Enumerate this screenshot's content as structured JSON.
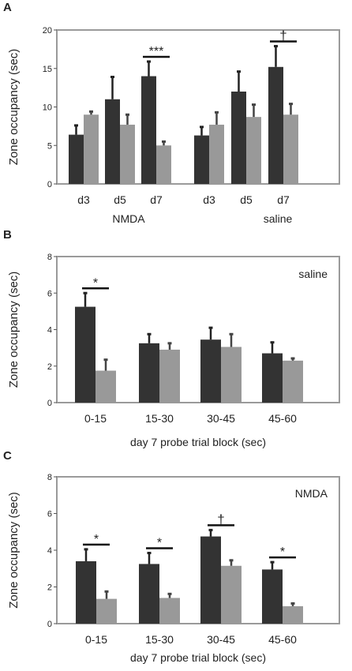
{
  "chart_data": [
    {
      "panel_label": "A",
      "type": "bar",
      "ylabel": "Zone occupancy (sec)",
      "ylim": [
        0,
        20
      ],
      "yticks": [
        "0",
        "5",
        "10",
        "15",
        "20"
      ],
      "groups": [
        "NMDA",
        "saline"
      ],
      "categories": [
        "d3",
        "d5",
        "d7",
        "d3",
        "d5",
        "d7"
      ],
      "series": [
        {
          "color": "#333333",
          "values": [
            6.4,
            11.0,
            14.0,
            6.3,
            12.0,
            15.2
          ],
          "errors": [
            1.2,
            2.9,
            1.9,
            1.1,
            2.6,
            2.7
          ]
        },
        {
          "color": "#999999",
          "values": [
            9.0,
            7.7,
            5.0,
            7.7,
            8.7,
            9.0
          ],
          "errors": [
            0.4,
            1.3,
            0.5,
            1.6,
            1.6,
            1.4
          ]
        }
      ],
      "annotations": [
        {
          "index": 2,
          "text": "***"
        },
        {
          "index": 5,
          "text": "†"
        }
      ]
    },
    {
      "panel_label": "B",
      "type": "bar",
      "xlabel": "day 7 probe trial block (sec)",
      "ylabel": "Zone occupancy (sec)",
      "ylim": [
        0,
        8
      ],
      "yticks": [
        "0",
        "2",
        "4",
        "6",
        "8"
      ],
      "inset_text": "saline",
      "categories": [
        "0-15",
        "15-30",
        "30-45",
        "45-60"
      ],
      "series": [
        {
          "color": "#333333",
          "values": [
            5.25,
            3.25,
            3.45,
            2.7
          ],
          "errors": [
            0.75,
            0.5,
            0.65,
            0.6
          ]
        },
        {
          "color": "#999999",
          "values": [
            1.75,
            2.9,
            3.05,
            2.3
          ],
          "errors": [
            0.6,
            0.35,
            0.7,
            0.12
          ]
        }
      ],
      "annotations": [
        {
          "index": 0,
          "text": "*"
        }
      ]
    },
    {
      "panel_label": "C",
      "type": "bar",
      "xlabel": "day 7 probe trial block (sec)",
      "ylabel": "Zone occupancy (sec)",
      "ylim": [
        0,
        8
      ],
      "yticks": [
        "0",
        "2",
        "4",
        "6",
        "8"
      ],
      "inset_text": "NMDA",
      "categories": [
        "0-15",
        "15-30",
        "30-45",
        "45-60"
      ],
      "series": [
        {
          "color": "#333333",
          "values": [
            3.4,
            3.25,
            4.75,
            2.95
          ],
          "errors": [
            0.65,
            0.6,
            0.35,
            0.4
          ]
        },
        {
          "color": "#999999",
          "values": [
            1.35,
            1.4,
            3.15,
            0.95
          ],
          "errors": [
            0.4,
            0.22,
            0.3,
            0.15
          ]
        }
      ],
      "annotations": [
        {
          "index": 0,
          "text": "*"
        },
        {
          "index": 1,
          "text": "*"
        },
        {
          "index": 2,
          "text": "†"
        },
        {
          "index": 3,
          "text": "*"
        }
      ]
    }
  ]
}
